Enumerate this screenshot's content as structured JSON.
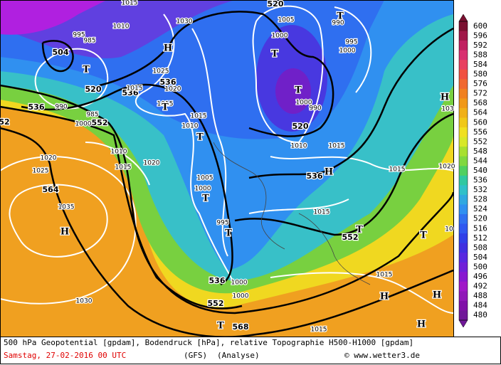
{
  "map": {
    "legend": {
      "values": [
        600,
        596,
        592,
        588,
        584,
        580,
        576,
        572,
        568,
        564,
        560,
        556,
        552,
        548,
        544,
        540,
        536,
        532,
        528,
        524,
        520,
        516,
        512,
        508,
        504,
        500,
        496,
        492,
        488,
        484,
        480
      ],
      "colors": [
        "#7a1030",
        "#a01848",
        "#c02060",
        "#d83070",
        "#e84060",
        "#f05040",
        "#f06830",
        "#f08020",
        "#f09818",
        "#f0b018",
        "#f0c818",
        "#f0e020",
        "#d8e828",
        "#a8e030",
        "#80d840",
        "#50d060",
        "#30c8a0",
        "#30c0c8",
        "#30a8e0",
        "#3090f0",
        "#3070f0",
        "#3058f0",
        "#3040e8",
        "#4030e0",
        "#5828e0",
        "#7020d8",
        "#8818d0",
        "#a018c8",
        "#9018b8",
        "#8010a8",
        "#701898"
      ]
    },
    "map_labels": [
      "504",
      "520",
      "536",
      "552",
      "536",
      "536",
      "520",
      "520",
      "536",
      "552",
      "564",
      "536",
      "552",
      "568",
      "52",
      "1030",
      "1025",
      "1015",
      "1020",
      "1015",
      "1015",
      "1010",
      "1005",
      "1000",
      "995",
      "1000",
      "990",
      "1000",
      "990",
      "1010",
      "1015",
      "1015",
      "1015",
      "1005",
      "1000",
      "995",
      "1020",
      "1025",
      "1035",
      "1020",
      "1015",
      "1010",
      "1030",
      "1015",
      "1015",
      "1000",
      "1000",
      "985",
      "995",
      "990",
      "985",
      "1000",
      "1015",
      "1010",
      "1020",
      "103",
      "10",
      "H",
      "T",
      "T",
      "T",
      "H",
      "T",
      "T",
      "T",
      "T",
      "T",
      "H",
      "H",
      "T",
      "T",
      "H",
      "H",
      "T",
      "H"
    ],
    "caption": {
      "line1": "500 hPa Geopotential [gpdam], Bodendruck [hPa], relative Topographie H500-H1000 [gpdam]",
      "date": "Samstag, 27-02-2016   00 UTC",
      "model": "(GFS)",
      "run": "(Analyse)",
      "credit": "© www.wetter3.de"
    }
  }
}
